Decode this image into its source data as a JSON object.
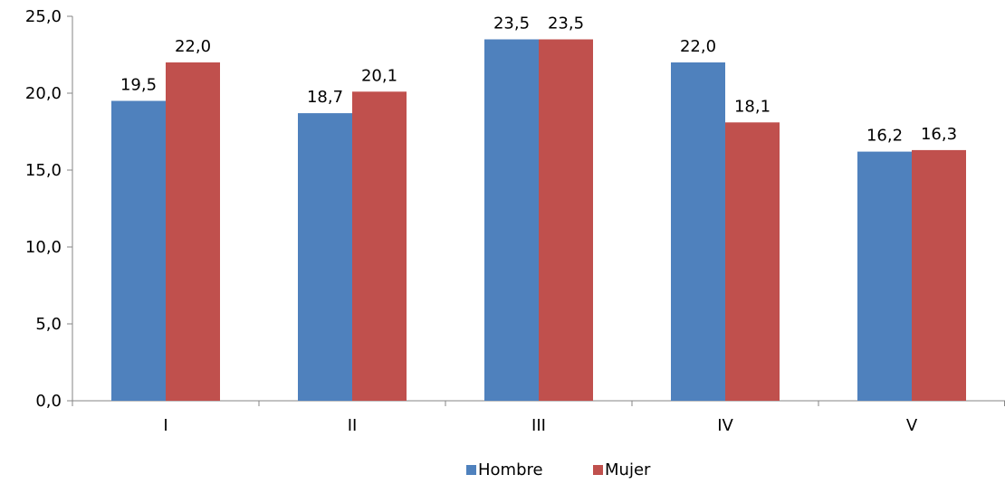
{
  "chart_data": {
    "type": "bar",
    "categories": [
      "I",
      "II",
      "III",
      "IV",
      "V"
    ],
    "series": [
      {
        "name": "Hombre",
        "color": "#4F81BD",
        "values": [
          19.5,
          18.7,
          23.5,
          22.0,
          16.2
        ]
      },
      {
        "name": "Mujer",
        "color": "#C0504D",
        "values": [
          22.0,
          20.1,
          23.5,
          18.1,
          16.3
        ]
      }
    ],
    "data_labels": [
      [
        "19,5",
        "18,7",
        "23,5",
        "22,0",
        "16,2"
      ],
      [
        "22,0",
        "20,1",
        "23,5",
        "18,1",
        "16,3"
      ]
    ],
    "y_ticks": [
      0,
      5,
      10,
      15,
      20,
      25
    ],
    "y_tick_labels": [
      "0,0",
      "5,0",
      "10,0",
      "15,0",
      "20,0",
      "25,0"
    ],
    "ylim": [
      0,
      25
    ],
    "title": "",
    "xlabel": "",
    "ylabel": "",
    "grid": false,
    "legend_position": "bottom"
  }
}
